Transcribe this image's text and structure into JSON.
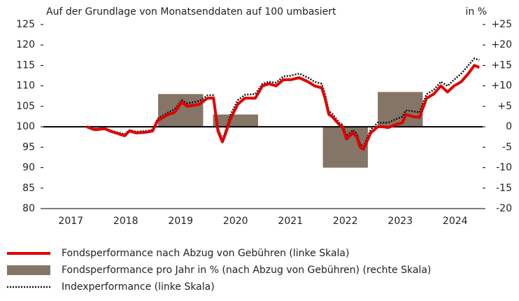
{
  "chart_data": {
    "type": "combo",
    "title": "Auf der Grundlage von Monatsenddaten auf 100 umbasiert",
    "y2_unit_label": "in %",
    "xlim": [
      2017,
      2025
    ],
    "xticks": [
      {
        "value": 2017.5,
        "label": "2017"
      },
      {
        "value": 2018.5,
        "label": "2018"
      },
      {
        "value": 2019.5,
        "label": "2019"
      },
      {
        "value": 2020.5,
        "label": "2020"
      },
      {
        "value": 2021.5,
        "label": "2021"
      },
      {
        "value": 2022.5,
        "label": "2022"
      },
      {
        "value": 2023.5,
        "label": "2023"
      },
      {
        "value": 2024.5,
        "label": "2024"
      }
    ],
    "ylim": [
      80,
      125
    ],
    "yticks": [
      80,
      85,
      90,
      95,
      100,
      105,
      110,
      115,
      120,
      125
    ],
    "y2lim": [
      -20,
      25
    ],
    "y2ticks": [
      -20,
      -15,
      -10,
      -5,
      0,
      {
        "value": 5,
        "label": "+5"
      },
      {
        "value": 10,
        "label": "+10"
      },
      {
        "value": 15,
        "label": "+15"
      },
      {
        "value": 20,
        "label": "+20"
      },
      {
        "value": 25,
        "label": "+25"
      }
    ],
    "reference_line": 100,
    "series": [
      {
        "name": "Fondsperformance nach Abzug von Gebühren (linke Skala)",
        "type": "line",
        "style": "solid",
        "color": "#e00000",
        "x": [
          2017.79,
          2017.93,
          2018.12,
          2018.25,
          2018.48,
          2018.57,
          2018.69,
          2018.89,
          2018.99,
          2019.08,
          2019.27,
          2019.39,
          2019.52,
          2019.62,
          2019.84,
          2019.99,
          2020.1,
          2020.18,
          2020.26,
          2020.31,
          2020.41,
          2020.54,
          2020.67,
          2020.86,
          2020.99,
          2021.11,
          2021.24,
          2021.37,
          2021.5,
          2021.66,
          2021.82,
          2021.94,
          2022.07,
          2022.13,
          2022.2,
          2022.26,
          2022.39,
          2022.45,
          2022.52,
          2022.64,
          2022.71,
          2022.77,
          2022.83,
          2022.96,
          2023.09,
          2023.19,
          2023.28,
          2023.41,
          2023.54,
          2023.6,
          2023.73,
          2023.85,
          2023.98,
          2024.11,
          2024.24,
          2024.36,
          2024.48,
          2024.61,
          2024.74,
          2024.85,
          2024.94
        ],
        "values": [
          100,
          99.3,
          99.5,
          98.8,
          97.8,
          99,
          98.5,
          98.7,
          99,
          101.5,
          103,
          103.5,
          106,
          105,
          105.5,
          107,
          107,
          99,
          96.3,
          98,
          102,
          105.5,
          107,
          107,
          110,
          110.5,
          110,
          111.5,
          111.5,
          112,
          111,
          110,
          109.5,
          107,
          103,
          102.5,
          100.5,
          100,
          97,
          98.5,
          97.5,
          95,
          94.5,
          98.5,
          100,
          100,
          99.8,
          100.5,
          101,
          103,
          102.5,
          102.3,
          107,
          108,
          110,
          108.5,
          110,
          111,
          113,
          115,
          114.5
        ]
      },
      {
        "name": "Fondsperformance pro Jahr in % (nach Abzug von Gebühren) (rechte Skala)",
        "type": "bar",
        "axis": "y2",
        "color": "#857566",
        "x": [
          2019.5,
          2020.5,
          2022.5,
          2023.5
        ],
        "values": [
          8,
          3,
          -10,
          8.5
        ]
      },
      {
        "name": "Indexperformance (linke Skala)",
        "type": "line",
        "style": "dotted",
        "color": "#111111",
        "x": [
          2017.79,
          2017.93,
          2018.12,
          2018.25,
          2018.48,
          2018.57,
          2018.69,
          2018.89,
          2018.99,
          2019.08,
          2019.27,
          2019.39,
          2019.52,
          2019.62,
          2019.84,
          2019.99,
          2020.1,
          2020.18,
          2020.26,
          2020.31,
          2020.41,
          2020.54,
          2020.67,
          2020.86,
          2020.99,
          2021.11,
          2021.24,
          2021.37,
          2021.5,
          2021.66,
          2021.82,
          2021.94,
          2022.07,
          2022.13,
          2022.2,
          2022.26,
          2022.39,
          2022.45,
          2022.52,
          2022.64,
          2022.71,
          2022.77,
          2022.83,
          2022.96,
          2023.09,
          2023.19,
          2023.28,
          2023.41,
          2023.54,
          2023.6,
          2023.73,
          2023.85,
          2023.98,
          2024.11,
          2024.24,
          2024.36,
          2024.48,
          2024.61,
          2024.74,
          2024.85,
          2024.94
        ],
        "values": [
          100,
          99.5,
          99.7,
          99,
          98.2,
          99.2,
          98.8,
          99,
          99.3,
          102,
          103.5,
          104.3,
          106.5,
          105.7,
          106.3,
          107.7,
          107.7,
          99.8,
          96.8,
          98.7,
          103,
          106.5,
          107.8,
          108,
          110.5,
          111,
          110.8,
          112.3,
          112.5,
          113,
          112,
          111,
          110.5,
          108,
          103.8,
          103.2,
          101,
          100.5,
          97.8,
          99.2,
          98.3,
          95.8,
          95.2,
          99.3,
          101,
          101,
          101,
          101.8,
          102.5,
          104,
          103.8,
          103.5,
          108,
          109,
          111,
          110,
          111.5,
          113,
          115,
          116.7,
          116.3
        ]
      }
    ]
  }
}
